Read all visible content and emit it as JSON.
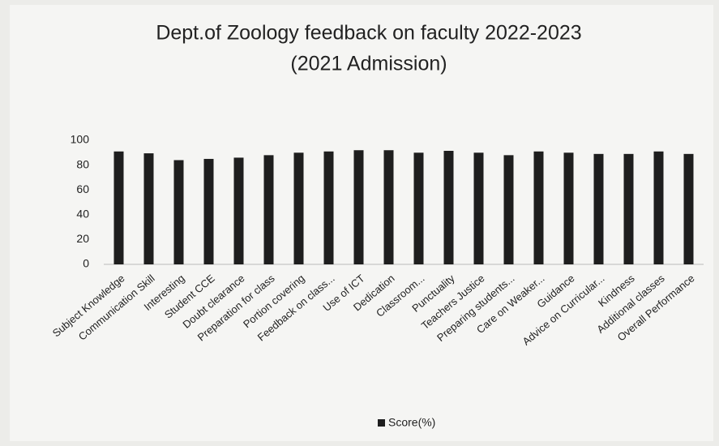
{
  "chart_data": {
    "type": "bar",
    "title": "Dept.of Zoology feedback on faculty 2022-2023",
    "subtitle": "(2021 Admission)",
    "categories": [
      "Subject Knowledge",
      "Communication Skill",
      "Interesting",
      "Student CCE",
      "Doubt clearance",
      "Preparation for class",
      "Portion covering",
      "Feedback on class...",
      "Use of ICT",
      "Dedication",
      "Classroom...",
      "Punctuality",
      "Teachers Justice",
      "Preparing students...",
      "Care on Weaker...",
      "Guidance",
      "Advice on Curricular...",
      "Kindness",
      "Additional classes",
      "Overall Performance"
    ],
    "series": [
      {
        "name": "Score(%)",
        "color": "#1e1e1e",
        "values": [
          91,
          89.5,
          84,
          85,
          86,
          88,
          90,
          91,
          92,
          92,
          90,
          91.5,
          90,
          88,
          91,
          90,
          89,
          89,
          91,
          89
        ]
      }
    ],
    "ylim": [
      0,
      100
    ],
    "yticks": [
      0,
      20,
      40,
      60,
      80,
      100
    ],
    "grid": false,
    "legend": "bottom"
  }
}
